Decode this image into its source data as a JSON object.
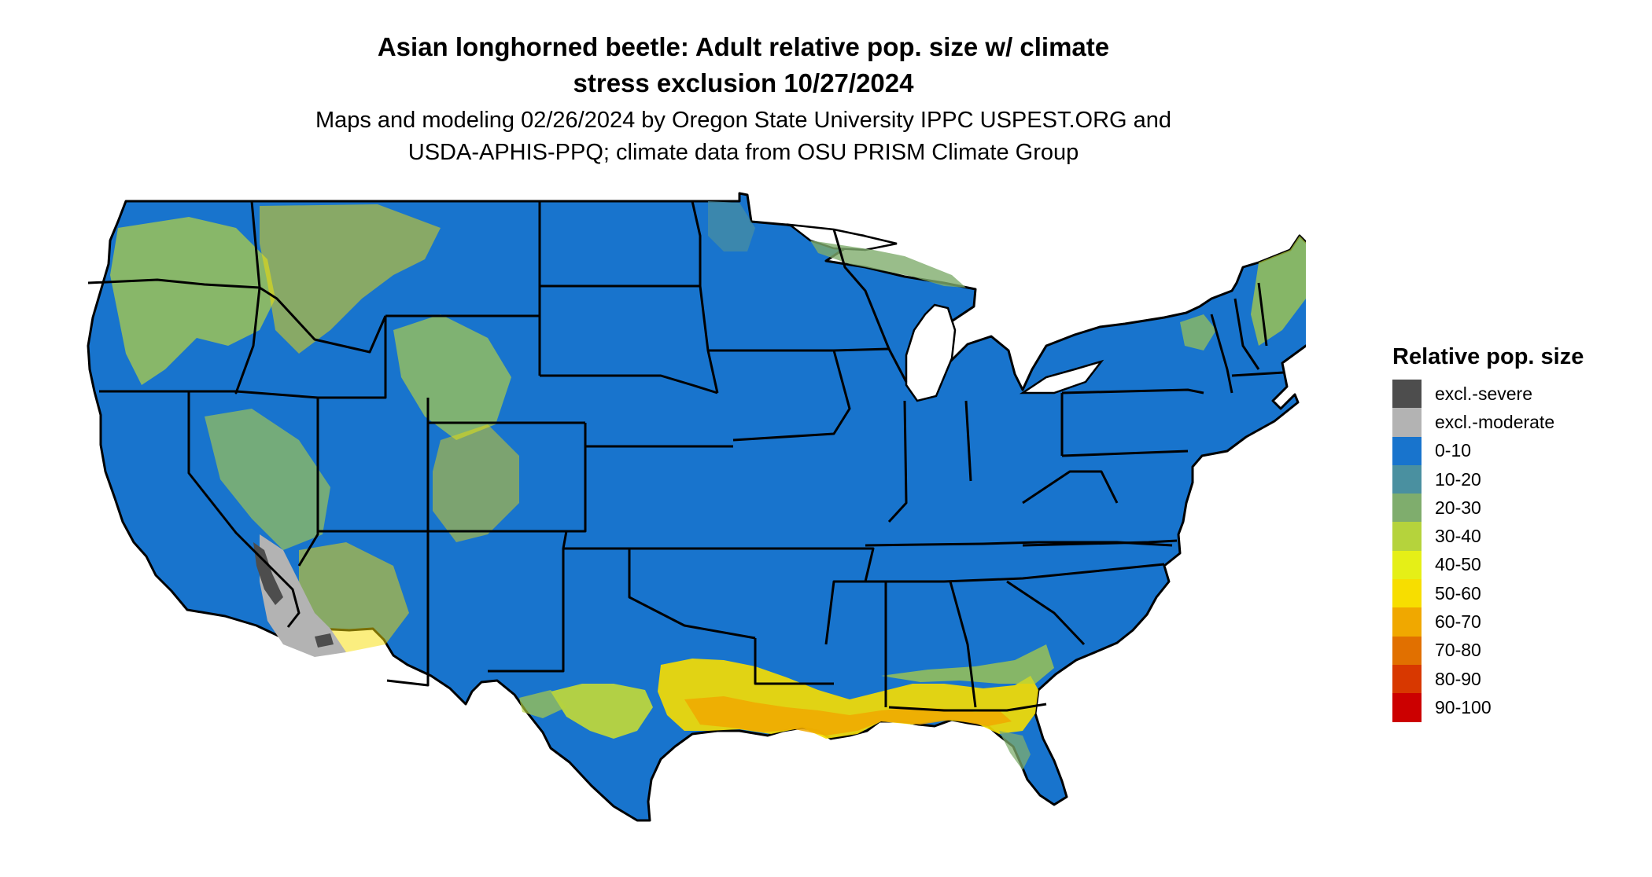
{
  "title_line1": "Asian longhorned beetle: Adult relative pop. size w/ climate",
  "title_line2": "stress exclusion 10/27/2024",
  "subtitle_line1": "Maps and modeling 02/26/2024 by Oregon State University IPPC USPEST.ORG and",
  "subtitle_line2": "USDA-APHIS-PPQ; climate data from OSU PRISM Climate Group",
  "legend": {
    "title": "Relative pop. size",
    "items": [
      {
        "label": "excl.-severe",
        "color": "#4d4d4d"
      },
      {
        "label": "excl.-moderate",
        "color": "#b3b3b3"
      },
      {
        "label": "0-10",
        "color": "#1874cd"
      },
      {
        "label": "10-20",
        "color": "#4a90a0"
      },
      {
        "label": "20-30",
        "color": "#7fad6d"
      },
      {
        "label": "30-40",
        "color": "#b5d33c"
      },
      {
        "label": "40-50",
        "color": "#e5ef17"
      },
      {
        "label": "50-60",
        "color": "#f7de00"
      },
      {
        "label": "60-70",
        "color": "#f0a800"
      },
      {
        "label": "70-80",
        "color": "#e17000"
      },
      {
        "label": "80-90",
        "color": "#d83800"
      },
      {
        "label": "90-100",
        "color": "#cc0000"
      }
    ]
  },
  "map": {
    "base_class": "0-10",
    "state_border_color": "#000000",
    "water_color": "#ffffff"
  }
}
